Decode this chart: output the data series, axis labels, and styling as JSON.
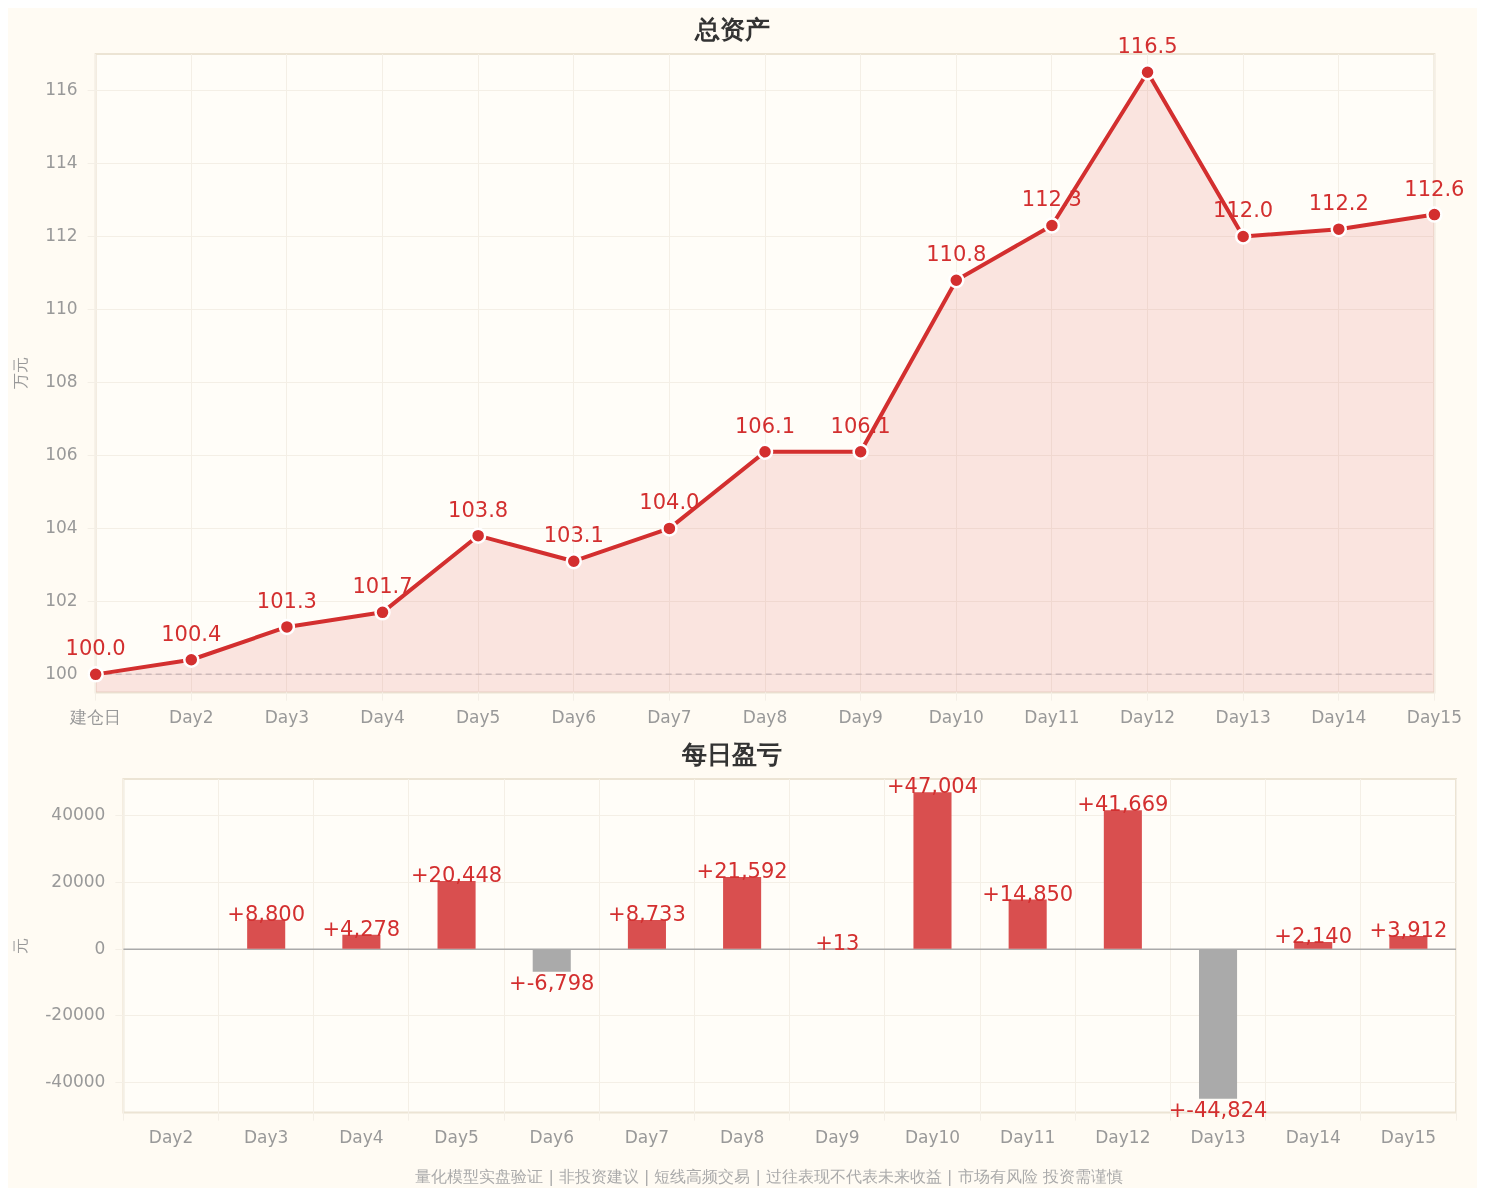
{
  "chart_data": [
    {
      "type": "area",
      "title": "总资产",
      "ylabel": "万元",
      "categories": [
        "建仓日",
        "Day2",
        "Day3",
        "Day4",
        "Day5",
        "Day6",
        "Day7",
        "Day8",
        "Day9",
        "Day10",
        "Day11",
        "Day12",
        "Day13",
        "Day14",
        "Day15"
      ],
      "series": [
        {
          "color": "#d32f2f",
          "values": [
            100.0,
            100.4,
            101.3,
            101.7,
            103.8,
            103.1,
            104.0,
            106.1,
            106.1,
            110.8,
            112.3,
            116.5,
            112.0,
            112.2,
            112.6
          ],
          "value_labels": [
            "100.0",
            "100.4",
            "101.3",
            "101.7",
            "103.8",
            "103.1",
            "104.0",
            "106.1",
            "106.1",
            "110.8",
            "112.3",
            "116.5",
            "112.0",
            "112.2",
            "112.6"
          ]
        }
      ],
      "ylim": [
        99.5,
        117
      ],
      "yticks": [
        100,
        102,
        104,
        106,
        108,
        110,
        112,
        114,
        116
      ],
      "grid": true,
      "marker": "circle",
      "ref_lines": [
        {
          "axis": "y",
          "value": 100,
          "color": "#cccccc",
          "line_style": "dashed"
        }
      ]
    },
    {
      "type": "bar",
      "title": "每日盈亏",
      "ylabel": "元",
      "categories": [
        "Day2",
        "Day3",
        "Day4",
        "Day5",
        "Day6",
        "Day7",
        "Day8",
        "Day9",
        "Day10",
        "Day11",
        "Day12",
        "Day13",
        "Day14",
        "Day15"
      ],
      "values": [
        null,
        8800,
        4278,
        20448,
        -6798,
        8733,
        21592,
        13,
        47004,
        14850,
        41669,
        -44824,
        2140,
        3912
      ],
      "colors": [
        "#d94f4f",
        "#d94f4f",
        "#d94f4f",
        "#d94f4f",
        "#aaaaaa",
        "#d94f4f",
        "#d94f4f",
        "#d94f4f",
        "#d94f4f",
        "#d94f4f",
        "#d94f4f",
        "#aaaaaa",
        "#d94f4f",
        "#d94f4f"
      ],
      "value_labels": [
        null,
        "+8,800",
        "+4,278",
        "+20,448",
        "+-6,798",
        "+8,733",
        "+21,592",
        "+13",
        "+47,004",
        "+14,850",
        "+41,669",
        "+-44,824",
        "+2,140",
        "+3,912"
      ],
      "ylim": [
        -49000,
        51000
      ],
      "yticks": [
        -40000,
        -20000,
        0,
        20000,
        40000
      ],
      "grid": true,
      "ref_lines": [
        {
          "axis": "y",
          "value": 0,
          "color": "#aaaaaa",
          "line_style": "solid"
        }
      ],
      "annotations": [
        "量化模型实盘验证 | 非投资建议 | 短线高频交易 | 过往表现不代表未来收益 | 市场有风险 投资需谨慎"
      ]
    }
  ]
}
